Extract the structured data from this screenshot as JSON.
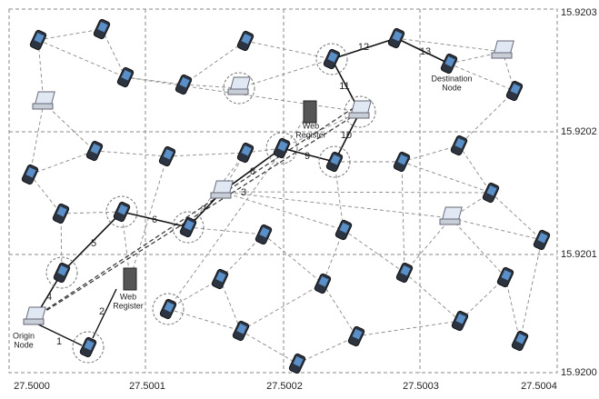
{
  "axes": {
    "x": [
      "27.5000",
      "27.5001",
      "27.5002",
      "27.5003",
      "27.5004"
    ],
    "y": [
      "15.9203",
      "15.9202",
      "15.9201",
      "15.9200"
    ]
  },
  "labels": {
    "origin": [
      "Origin",
      "Node"
    ],
    "destination": [
      "Destination",
      "Node"
    ],
    "web_register_top": [
      "Web",
      "Register"
    ],
    "web_register_bottom": [
      "Web",
      "Register"
    ]
  },
  "hops": [
    "1",
    "2",
    "3",
    "4",
    "5",
    "6",
    "7",
    "8",
    "9",
    "10",
    "11",
    "12",
    "13"
  ]
}
